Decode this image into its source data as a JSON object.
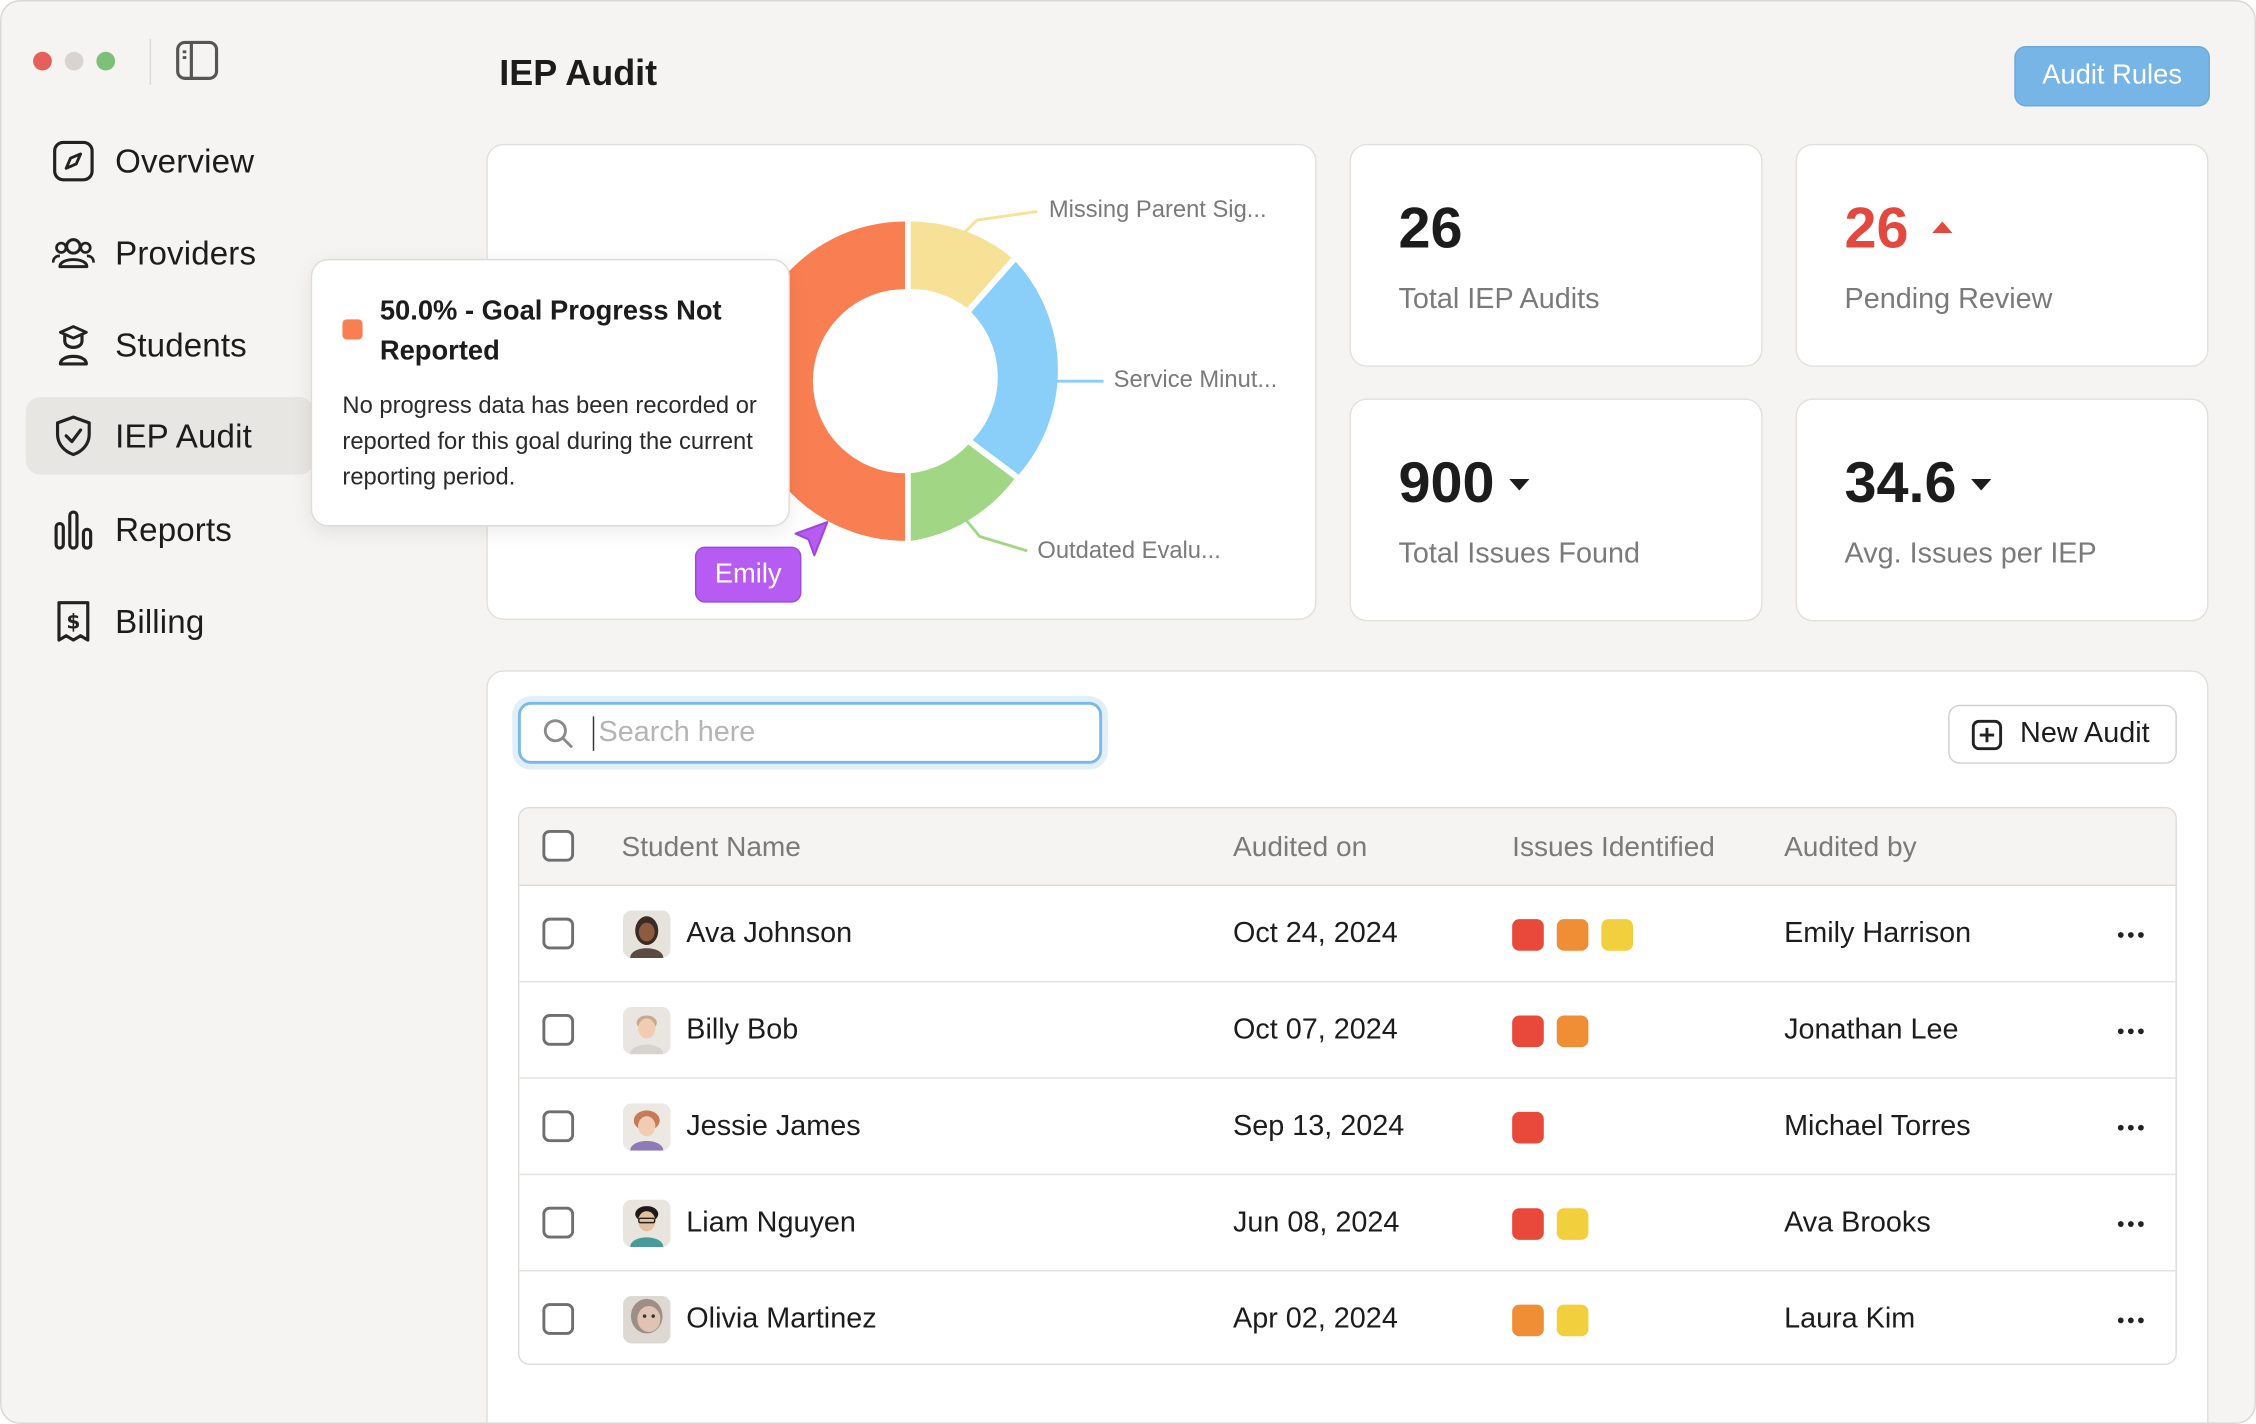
{
  "window": {
    "title": "IEP Audit"
  },
  "sidebar": {
    "items": [
      {
        "label": "Overview",
        "icon": "compass-icon"
      },
      {
        "label": "Providers",
        "icon": "users-icon"
      },
      {
        "label": "Students",
        "icon": "student-icon"
      },
      {
        "label": "IEP Audit",
        "icon": "shield-check-icon",
        "active": true
      },
      {
        "label": "Reports",
        "icon": "bar-chart-icon"
      },
      {
        "label": "Billing",
        "icon": "receipt-icon"
      }
    ]
  },
  "header": {
    "title": "IEP Audit",
    "audit_rules_label": "Audit Rules",
    "accent": "#76b5e6"
  },
  "donut": {
    "labels": {
      "missing": "Missing Parent Sig...",
      "service": "Service Minut...",
      "outdated": "Outdated Evalu..."
    },
    "colors": {
      "goal": "#f97f53",
      "missing": "#f7e197",
      "service": "#89cff9",
      "outdated": "#a1d784"
    }
  },
  "tooltip": {
    "title": "50.0% - Goal Progress Not Reported",
    "body": "No progress data has been recorded or reported for this goal during the current reporting period."
  },
  "cursor": {
    "name": "Emily",
    "color": "#b75cf2"
  },
  "stats": {
    "total_audits": {
      "value": "26",
      "label": "Total IEP Audits"
    },
    "pending": {
      "value": "26",
      "label": "Pending Review",
      "trend": "up"
    },
    "issues": {
      "value": "900",
      "label": "Total Issues Found",
      "trend": "down"
    },
    "avg": {
      "value": "34.6",
      "label": "Avg. Issues per IEP",
      "trend": "down"
    }
  },
  "search": {
    "placeholder": "Search here",
    "value": ""
  },
  "new_audit_label": "New Audit",
  "table": {
    "columns": [
      "Student Name",
      "Audited on",
      "Issues Identified",
      "Audited by"
    ],
    "rows": [
      {
        "name": "Ava Johnson",
        "date": "Oct 24, 2024",
        "issues": [
          "#e8493b",
          "#ef8e35",
          "#f2cf3c"
        ],
        "by": "Emily Harrison"
      },
      {
        "name": "Billy Bob",
        "date": "Oct 07, 2024",
        "issues": [
          "#e8493b",
          "#ef8e35"
        ],
        "by": "Jonathan Lee"
      },
      {
        "name": "Jessie James",
        "date": "Sep 13, 2024",
        "issues": [
          "#e8493b"
        ],
        "by": "Michael Torres"
      },
      {
        "name": "Liam Nguyen",
        "date": "Jun 08, 2024",
        "issues": [
          "#e8493b",
          "#f2cf3c"
        ],
        "by": "Ava Brooks"
      },
      {
        "name": "Olivia Martinez",
        "date": "Apr 02, 2024",
        "issues": [
          "#ef8e35",
          "#f2cf3c"
        ],
        "by": "Laura Kim"
      }
    ]
  }
}
